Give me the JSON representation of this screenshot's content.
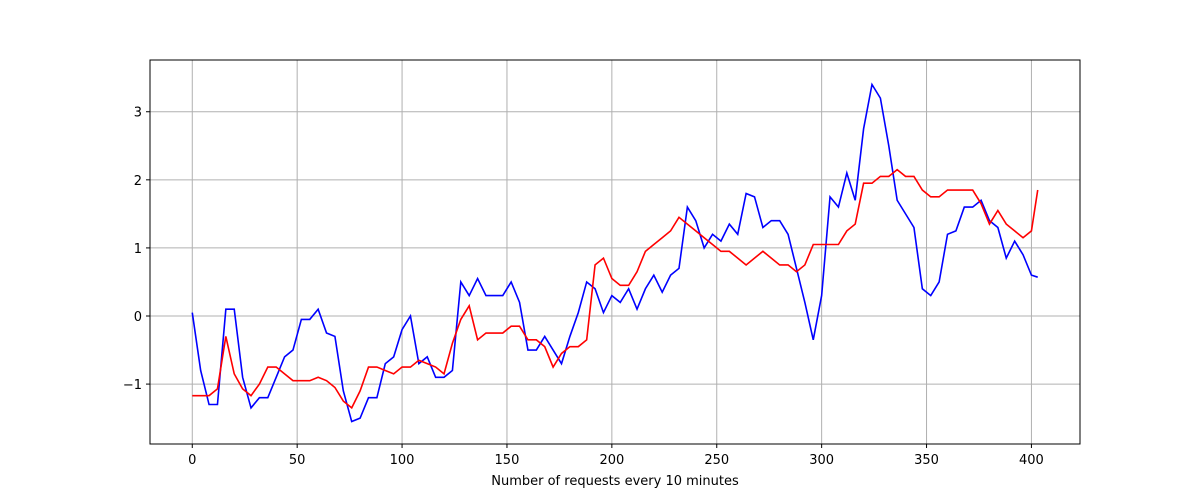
{
  "chart_data": {
    "type": "line",
    "x_label": "Number of requests every 10 minutes",
    "x": [
      0,
      4,
      8,
      12,
      16,
      20,
      24,
      28,
      32,
      36,
      40,
      44,
      48,
      52,
      56,
      60,
      64,
      68,
      72,
      76,
      80,
      84,
      88,
      92,
      96,
      100,
      104,
      108,
      112,
      116,
      120,
      124,
      128,
      132,
      136,
      140,
      144,
      148,
      152,
      156,
      160,
      164,
      168,
      172,
      176,
      180,
      184,
      188,
      192,
      196,
      200,
      204,
      208,
      212,
      216,
      220,
      224,
      228,
      232,
      236,
      240,
      244,
      248,
      252,
      256,
      260,
      264,
      268,
      272,
      276,
      280,
      284,
      288,
      292,
      296,
      300,
      304,
      308,
      312,
      316,
      320,
      324,
      328,
      332,
      336,
      340,
      344,
      348,
      352,
      356,
      360,
      364,
      368,
      372,
      376,
      380,
      384,
      388,
      392,
      396,
      400,
      403
    ],
    "series": [
      {
        "color": "#0000ff",
        "values": [
          0.05,
          -0.8,
          -1.3,
          -1.3,
          0.1,
          0.1,
          -0.9,
          -1.35,
          -1.2,
          -1.2,
          -0.9,
          -0.6,
          -0.5,
          -0.05,
          -0.05,
          0.1,
          -0.25,
          -0.3,
          -1.1,
          -1.55,
          -1.5,
          -1.2,
          -1.2,
          -0.7,
          -0.6,
          -0.2,
          0.0,
          -0.7,
          -0.6,
          -0.9,
          -0.9,
          -0.8,
          0.5,
          0.3,
          0.55,
          0.3,
          0.3,
          0.3,
          0.5,
          0.2,
          -0.5,
          -0.5,
          -0.3,
          -0.5,
          -0.7,
          -0.3,
          0.05,
          0.5,
          0.4,
          0.05,
          0.3,
          0.2,
          0.4,
          0.1,
          0.4,
          0.6,
          0.35,
          0.6,
          0.7,
          1.6,
          1.4,
          1.0,
          1.2,
          1.1,
          1.35,
          1.2,
          1.8,
          1.75,
          1.3,
          1.4,
          1.4,
          1.2,
          0.7,
          0.2,
          -0.35,
          0.3,
          1.75,
          1.6,
          2.1,
          1.7,
          2.75,
          3.4,
          3.2,
          2.5,
          1.7,
          1.5,
          1.3,
          0.4,
          0.3,
          0.5,
          1.2,
          1.25,
          1.6,
          1.6,
          1.7,
          1.4,
          1.3,
          0.85,
          1.1,
          0.9,
          0.6,
          0.57
        ]
      },
      {
        "color": "#ff0000",
        "values": [
          -1.17,
          -1.17,
          -1.17,
          -1.07,
          -0.3,
          -0.85,
          -1.07,
          -1.17,
          -1.0,
          -0.75,
          -0.75,
          -0.85,
          -0.95,
          -0.95,
          -0.95,
          -0.9,
          -0.95,
          -1.05,
          -1.25,
          -1.35,
          -1.1,
          -0.75,
          -0.75,
          -0.8,
          -0.85,
          -0.75,
          -0.75,
          -0.65,
          -0.7,
          -0.75,
          -0.85,
          -0.4,
          -0.05,
          0.15,
          -0.35,
          -0.25,
          -0.25,
          -0.25,
          -0.15,
          -0.15,
          -0.35,
          -0.35,
          -0.45,
          -0.75,
          -0.55,
          -0.45,
          -0.45,
          -0.35,
          0.75,
          0.85,
          0.55,
          0.45,
          0.45,
          0.65,
          0.95,
          1.05,
          1.15,
          1.25,
          1.45,
          1.35,
          1.25,
          1.15,
          1.05,
          0.95,
          0.95,
          0.85,
          0.75,
          0.85,
          0.95,
          0.85,
          0.75,
          0.75,
          0.65,
          0.75,
          1.05,
          1.05,
          1.05,
          1.05,
          1.25,
          1.35,
          1.95,
          1.95,
          2.05,
          2.05,
          2.15,
          2.05,
          2.05,
          1.85,
          1.75,
          1.75,
          1.85,
          1.85,
          1.85,
          1.85,
          1.65,
          1.35,
          1.55,
          1.35,
          1.25,
          1.15,
          1.25,
          1.85
        ]
      }
    ],
    "xlim": [
      -20.15,
      423.15
    ],
    "xticks": [
      0,
      50,
      100,
      150,
      200,
      250,
      300,
      350,
      400
    ],
    "ylim": [
      -1.88,
      3.76
    ],
    "yticks": [
      {
        "value": -1,
        "label": "−1"
      },
      0,
      1,
      2,
      3
    ],
    "grid": true
  }
}
